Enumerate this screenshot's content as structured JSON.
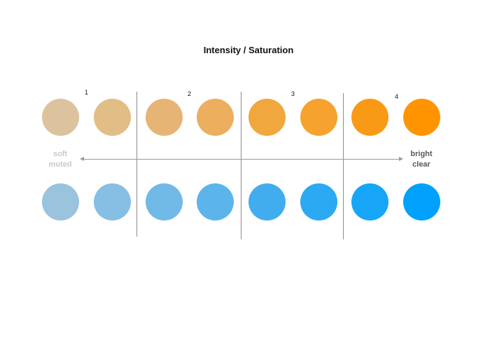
{
  "title": "Intensity / Saturation",
  "segments": [
    "1",
    "2",
    "3",
    "4"
  ],
  "axis": {
    "left_label_line1": "soft",
    "left_label_line2": "muted",
    "right_label_line1": "bright",
    "right_label_line2": "clear"
  },
  "rows": {
    "orange": [
      "#dcc39e",
      "#e0be86",
      "#e6b576",
      "#ebaf5e",
      "#f0a73e",
      "#f5a22f",
      "#f99a16",
      "#ff9400"
    ],
    "blue": [
      "#9ac3de",
      "#86bfe3",
      "#71b9e6",
      "#5bb5ea",
      "#42adee",
      "#2ba9f2",
      "#17a5f7",
      "#00a1fc"
    ]
  }
}
